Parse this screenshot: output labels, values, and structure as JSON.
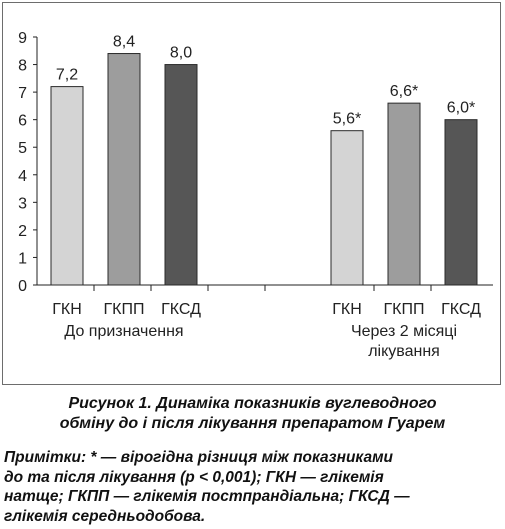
{
  "chart_data": {
    "type": "bar",
    "ylim": [
      0,
      9
    ],
    "yticks": [
      0,
      1,
      2,
      3,
      4,
      5,
      6,
      7,
      8,
      9
    ],
    "grid": false,
    "groups": [
      {
        "label_lines": [
          "До призначення"
        ],
        "bars": [
          {
            "category": "ГКН",
            "value": 7.2,
            "label": "7,2",
            "color": "#d4d4d4"
          },
          {
            "category": "ГКПП",
            "value": 8.4,
            "label": "8,4",
            "color": "#9d9d9d"
          },
          {
            "category": "ГКСД",
            "value": 8.0,
            "label": "8,0",
            "color": "#565656"
          }
        ]
      },
      {
        "label_lines": [
          "Через 2 місяці",
          "лікування"
        ],
        "bars": [
          {
            "category": "ГКН",
            "value": 5.6,
            "label": "5,6*",
            "color": "#d4d4d4"
          },
          {
            "category": "ГКПП",
            "value": 6.6,
            "label": "6,6*",
            "color": "#9d9d9d"
          },
          {
            "category": "ГКСД",
            "value": 6.0,
            "label": "6,0*",
            "color": "#565656"
          }
        ]
      }
    ]
  },
  "caption": {
    "line1": "Рисунок 1. Динаміка показників вуглеводного",
    "line2": "обміну до і після лікування препаратом Гуарем"
  },
  "note": {
    "lines": [
      "Примітки: * — вірогідна різниця між показниками",
      "до та після лікування (р < 0,001); ГКН — глікемія",
      "натще; ГКПП — глікемія постпрандіальна; ГКСД —",
      "глікемія середньодобова."
    ]
  }
}
